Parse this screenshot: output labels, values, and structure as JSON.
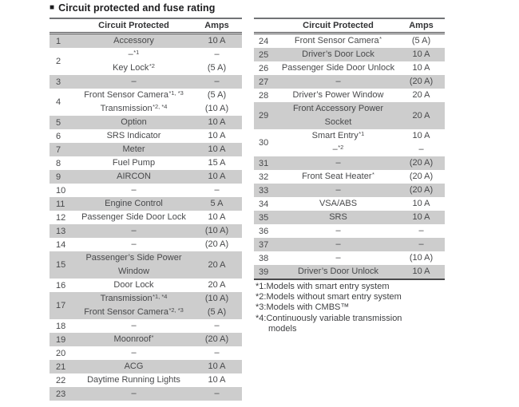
{
  "title": {
    "bullet": "■",
    "text": "Circuit protected and fuse rating"
  },
  "colors": {
    "row_shade": "#cdcdcd",
    "text": "#48494b",
    "header_border": "#48484a"
  },
  "tables": [
    {
      "name": "fuse-table-1-23",
      "headers": {
        "circuit": "Circuit Protected",
        "amps": "Amps"
      },
      "rows": [
        {
          "num": "1",
          "shaded": true,
          "circuit": [
            {
              "text": "Accessory"
            }
          ],
          "amps": [
            "10 A"
          ]
        },
        {
          "num": "2",
          "shaded": false,
          "circuit": [
            {
              "text": "–",
              "sup": "*1"
            },
            {
              "text": "Key Lock",
              "sup": "*2"
            }
          ],
          "amps": [
            "–",
            "(5 A)"
          ]
        },
        {
          "num": "3",
          "shaded": true,
          "circuit": [
            {
              "text": "–"
            }
          ],
          "amps": [
            "–"
          ]
        },
        {
          "num": "4",
          "shaded": false,
          "circuit": [
            {
              "text": "Front Sensor Camera",
              "sup": "*1, *3"
            },
            {
              "text": "Transmission",
              "sup": "*2, *4"
            }
          ],
          "amps": [
            "(5 A)",
            "(10 A)"
          ]
        },
        {
          "num": "5",
          "shaded": true,
          "circuit": [
            {
              "text": "Option"
            }
          ],
          "amps": [
            "10 A"
          ]
        },
        {
          "num": "6",
          "shaded": false,
          "circuit": [
            {
              "text": "SRS Indicator"
            }
          ],
          "amps": [
            "10 A"
          ]
        },
        {
          "num": "7",
          "shaded": true,
          "circuit": [
            {
              "text": "Meter"
            }
          ],
          "amps": [
            "10 A"
          ]
        },
        {
          "num": "8",
          "shaded": false,
          "circuit": [
            {
              "text": "Fuel Pump"
            }
          ],
          "amps": [
            "15 A"
          ]
        },
        {
          "num": "9",
          "shaded": true,
          "circuit": [
            {
              "text": "AIRCON"
            }
          ],
          "amps": [
            "10 A"
          ]
        },
        {
          "num": "10",
          "shaded": false,
          "circuit": [
            {
              "text": "–"
            }
          ],
          "amps": [
            "–"
          ]
        },
        {
          "num": "11",
          "shaded": true,
          "circuit": [
            {
              "text": "Engine Control"
            }
          ],
          "amps": [
            "5 A"
          ]
        },
        {
          "num": "12",
          "shaded": false,
          "circuit": [
            {
              "text": "Passenger Side Door Lock"
            }
          ],
          "amps": [
            "10 A"
          ]
        },
        {
          "num": "13",
          "shaded": true,
          "circuit": [
            {
              "text": "–"
            }
          ],
          "amps": [
            "(10 A)"
          ]
        },
        {
          "num": "14",
          "shaded": false,
          "circuit": [
            {
              "text": "–"
            }
          ],
          "amps": [
            "(20 A)"
          ]
        },
        {
          "num": "15",
          "shaded": true,
          "circuit": [
            {
              "text": "Passenger’s Side Power"
            },
            {
              "text": "Window"
            }
          ],
          "amps": [
            "20 A"
          ]
        },
        {
          "num": "16",
          "shaded": false,
          "circuit": [
            {
              "text": "Door Lock"
            }
          ],
          "amps": [
            "20 A"
          ]
        },
        {
          "num": "17",
          "shaded": true,
          "circuit": [
            {
              "text": "Transmission",
              "sup": "*1, *4"
            },
            {
              "text": "Front Sensor Camera",
              "sup": "*2, *3"
            }
          ],
          "amps": [
            "(10 A)",
            "(5 A)"
          ]
        },
        {
          "num": "18",
          "shaded": false,
          "circuit": [
            {
              "text": "–"
            }
          ],
          "amps": [
            "–"
          ]
        },
        {
          "num": "19",
          "shaded": true,
          "circuit": [
            {
              "text": "Moonroof",
              "sup": "*"
            }
          ],
          "amps": [
            "(20 A)"
          ]
        },
        {
          "num": "20",
          "shaded": false,
          "circuit": [
            {
              "text": "–"
            }
          ],
          "amps": [
            "–"
          ]
        },
        {
          "num": "21",
          "shaded": true,
          "circuit": [
            {
              "text": "ACG"
            }
          ],
          "amps": [
            "10 A"
          ]
        },
        {
          "num": "22",
          "shaded": false,
          "circuit": [
            {
              "text": "Daytime Running Lights"
            }
          ],
          "amps": [
            "10 A"
          ]
        },
        {
          "num": "23",
          "shaded": true,
          "circuit": [
            {
              "text": "–"
            }
          ],
          "amps": [
            "–"
          ]
        }
      ]
    },
    {
      "name": "fuse-table-24-39",
      "headers": {
        "circuit": "Circuit Protected",
        "amps": "Amps"
      },
      "rows": [
        {
          "num": "24",
          "shaded": false,
          "circuit": [
            {
              "text": "Front Sensor Camera",
              "sup": "*"
            }
          ],
          "amps": [
            "(5 A)"
          ]
        },
        {
          "num": "25",
          "shaded": true,
          "circuit": [
            {
              "text": "Driver’s Door Lock"
            }
          ],
          "amps": [
            "10 A"
          ]
        },
        {
          "num": "26",
          "shaded": false,
          "circuit": [
            {
              "text": "Passenger Side Door Unlock"
            }
          ],
          "amps": [
            "10 A"
          ]
        },
        {
          "num": "27",
          "shaded": true,
          "circuit": [
            {
              "text": "–"
            }
          ],
          "amps": [
            "(20 A)"
          ]
        },
        {
          "num": "28",
          "shaded": false,
          "circuit": [
            {
              "text": "Driver’s Power Window"
            }
          ],
          "amps": [
            "20 A"
          ]
        },
        {
          "num": "29",
          "shaded": true,
          "circuit": [
            {
              "text": "Front Accessory Power"
            },
            {
              "text": "Socket"
            }
          ],
          "amps": [
            "20 A"
          ]
        },
        {
          "num": "30",
          "shaded": false,
          "circuit": [
            {
              "text": "Smart Entry",
              "sup": "*1"
            },
            {
              "text": "–",
              "sup": "*2"
            }
          ],
          "amps": [
            "10 A",
            "–"
          ]
        },
        {
          "num": "31",
          "shaded": true,
          "circuit": [
            {
              "text": "–"
            }
          ],
          "amps": [
            "(20 A)"
          ]
        },
        {
          "num": "32",
          "shaded": false,
          "circuit": [
            {
              "text": "Front Seat Heater",
              "sup": "*"
            }
          ],
          "amps": [
            "(20 A)"
          ]
        },
        {
          "num": "33",
          "shaded": true,
          "circuit": [
            {
              "text": "–"
            }
          ],
          "amps": [
            "(20 A)"
          ]
        },
        {
          "num": "34",
          "shaded": false,
          "circuit": [
            {
              "text": "VSA/ABS"
            }
          ],
          "amps": [
            "10 A"
          ]
        },
        {
          "num": "35",
          "shaded": true,
          "circuit": [
            {
              "text": "SRS"
            }
          ],
          "amps": [
            "10 A"
          ]
        },
        {
          "num": "36",
          "shaded": false,
          "circuit": [
            {
              "text": "–"
            }
          ],
          "amps": [
            "–"
          ]
        },
        {
          "num": "37",
          "shaded": true,
          "circuit": [
            {
              "text": "–"
            }
          ],
          "amps": [
            "–"
          ]
        },
        {
          "num": "38",
          "shaded": false,
          "circuit": [
            {
              "text": "–"
            }
          ],
          "amps": [
            "(10 A)"
          ]
        },
        {
          "num": "39",
          "shaded": true,
          "circuit": [
            {
              "text": "Driver’s Door Unlock"
            }
          ],
          "amps": [
            "10 A"
          ]
        }
      ]
    }
  ],
  "footnotes": [
    "*1:Models with smart entry system",
    "*2:Models without smart entry system",
    "*3:Models with CMBS™",
    "*4:Continuously variable transmission models"
  ]
}
